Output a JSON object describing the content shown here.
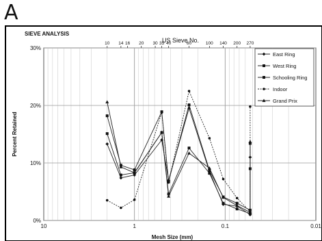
{
  "panel_letter": "A",
  "chart_data": {
    "type": "line",
    "title": "SIEVE ANALYSIS",
    "top_axis_label": "US Sieve No.",
    "xlabel": "Mesh Size (mm)",
    "ylabel": "Percent Retained",
    "x_scale": "log",
    "x_reversed": true,
    "xlim": [
      10,
      0.01
    ],
    "ylim": [
      0,
      30
    ],
    "grid": true,
    "legend_position": "top-right",
    "x_ticks": [
      {
        "value": 10,
        "label": "10"
      },
      {
        "value": 1,
        "label": "1"
      },
      {
        "value": 0.1,
        "label": "0.1"
      },
      {
        "value": 0.01,
        "label": "0.01"
      }
    ],
    "y_ticks": [
      {
        "value": 0,
        "label": "0%"
      },
      {
        "value": 10,
        "label": "10%"
      },
      {
        "value": 20,
        "label": "20%"
      },
      {
        "value": 30,
        "label": "30%"
      }
    ],
    "sieve_ticks": [
      {
        "label": "10",
        "mm": 2.0
      },
      {
        "label": "14",
        "mm": 1.41
      },
      {
        "label": "16",
        "mm": 1.19
      },
      {
        "label": "20",
        "mm": 0.84
      },
      {
        "label": "30",
        "mm": 0.59
      },
      {
        "label": "35",
        "mm": 0.5
      },
      {
        "label": "40",
        "mm": 0.42
      },
      {
        "label": "60",
        "mm": 0.25
      },
      {
        "label": "100",
        "mm": 0.149
      },
      {
        "label": "140",
        "mm": 0.105
      },
      {
        "label": "200",
        "mm": 0.074
      },
      {
        "label": "270",
        "mm": 0.053
      }
    ],
    "x": [
      2.0,
      1.41,
      1.0,
      0.5,
      0.42,
      0.25,
      0.149,
      0.105,
      0.074,
      0.053,
      0.053
    ],
    "series": [
      {
        "name": "East Ring",
        "marker": "diamond",
        "dash": "solid",
        "values": [
          13.3,
          7.4,
          7.9,
          14.0,
          7.0,
          19.5,
          8.5,
          2.8,
          2.5,
          1.0,
          11.0
        ]
      },
      {
        "name": "West Ring",
        "marker": "square",
        "dash": "solid",
        "values": [
          15.1,
          7.9,
          8.3,
          15.3,
          4.6,
          12.6,
          8.2,
          3.0,
          2.0,
          1.2,
          9.0
        ]
      },
      {
        "name": "Schooling Ring",
        "marker": "square",
        "dash": "solid",
        "values": [
          18.2,
          9.6,
          8.8,
          18.9,
          6.8,
          20.1,
          8.7,
          4.1,
          3.0,
          1.8,
          13.4
        ]
      },
      {
        "name": "Indoor",
        "marker": "circle",
        "dash": "dotted",
        "values": [
          3.5,
          2.2,
          3.6,
          18.8,
          6.6,
          22.5,
          14.3,
          7.2,
          3.9,
          1.5,
          19.8
        ]
      },
      {
        "name": "Grand Prix",
        "marker": "triangle",
        "dash": "solid",
        "values": [
          20.6,
          9.3,
          8.3,
          15.3,
          4.2,
          11.7,
          9.1,
          4.0,
          2.6,
          1.4,
          13.7
        ]
      }
    ]
  }
}
